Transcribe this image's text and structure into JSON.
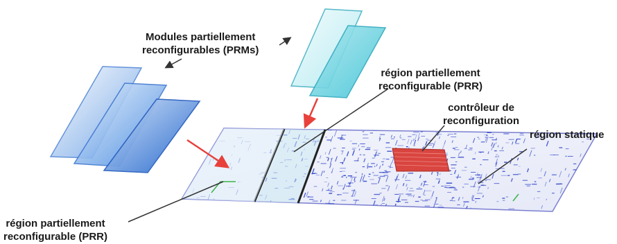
{
  "labels": {
    "prms": {
      "line1": "Modules partiellement",
      "line2": "reconfigurables (PRMs)"
    },
    "prr_top": {
      "line1": "région partiellement",
      "line2": "reconfigurable (PRR)"
    },
    "controller": {
      "line1": "contrôleur de",
      "line2": "reconfiguration"
    },
    "static": {
      "line1": "région statique"
    },
    "prr_bottom": {
      "line1": "région partiellement",
      "line2": "reconfigurable (PRR)"
    }
  },
  "colors": {
    "module_blue": "#2e74d6",
    "module_cyan": "#5fd0e0",
    "board_fill": "#eef0fb",
    "board_border": "#7a7fd0",
    "routing": "#2a3fc8",
    "controller": "#d9453f",
    "arrow_red": "#e8413c",
    "pointer": "#333333",
    "slot_border": "#222222"
  }
}
